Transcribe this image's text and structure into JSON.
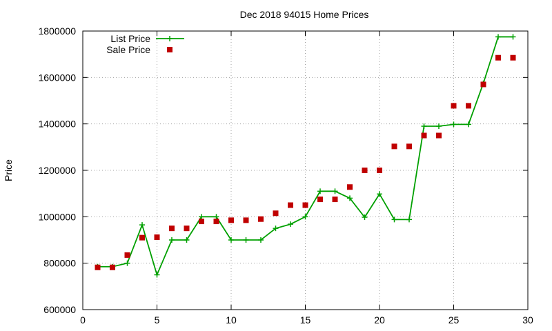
{
  "chart_data": {
    "type": "line",
    "title": "Dec 2018 94015 Home Prices",
    "xlabel": "",
    "ylabel": "Price",
    "xlim": [
      0,
      30
    ],
    "ylim": [
      600000,
      1800000
    ],
    "x_ticks": [
      0,
      5,
      10,
      15,
      20,
      25,
      30
    ],
    "y_ticks": [
      600000,
      800000,
      1000000,
      1200000,
      1400000,
      1600000,
      1800000
    ],
    "grid": true,
    "legend_position": "top-left",
    "series": [
      {
        "name": "List Price",
        "style": "line-with-plus-markers",
        "color": "#00a000",
        "x": [
          1,
          2,
          3,
          4,
          5,
          6,
          7,
          8,
          9,
          10,
          11,
          12,
          13,
          14,
          15,
          16,
          17,
          18,
          19,
          20,
          21,
          22,
          23,
          24,
          25,
          26,
          27,
          28,
          29
        ],
        "values": [
          785000,
          785000,
          800000,
          965000,
          750000,
          900000,
          900000,
          1000000,
          1000000,
          900000,
          900000,
          900000,
          950000,
          968000,
          1000000,
          1110000,
          1110000,
          1080000,
          998000,
          1098000,
          988000,
          988000,
          1390000,
          1390000,
          1398000,
          1398000,
          1575000,
          1775000,
          1775000
        ]
      },
      {
        "name": "Sale Price",
        "style": "square-markers",
        "color": "#c00000",
        "x": [
          1,
          2,
          3,
          4,
          5,
          6,
          7,
          8,
          9,
          10,
          11,
          12,
          13,
          14,
          15,
          16,
          17,
          18,
          19,
          20,
          21,
          22,
          23,
          24,
          25,
          26,
          27,
          28,
          29
        ],
        "values": [
          782000,
          782000,
          835000,
          910000,
          912000,
          950000,
          950000,
          980000,
          980000,
          985000,
          985000,
          990000,
          1015000,
          1050000,
          1050000,
          1075000,
          1075000,
          1128000,
          1200000,
          1200000,
          1303000,
          1303000,
          1350000,
          1350000,
          1478000,
          1478000,
          1570000,
          1685000,
          1685000
        ]
      }
    ]
  }
}
